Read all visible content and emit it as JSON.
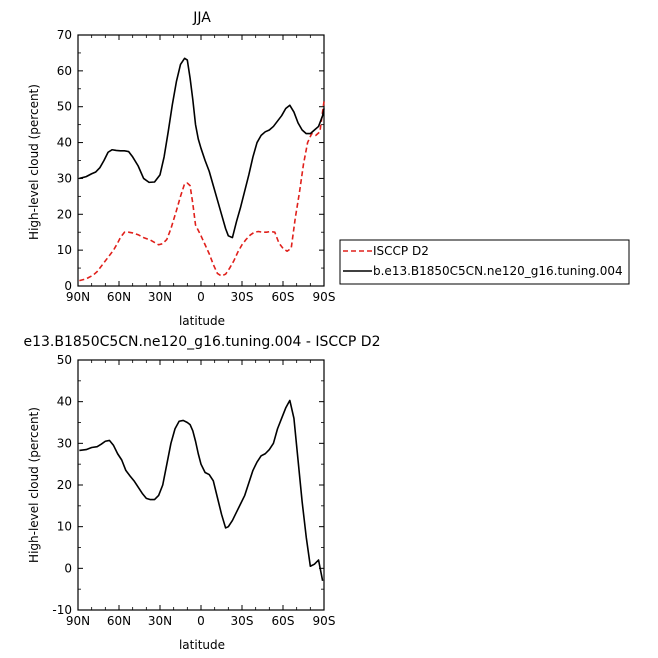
{
  "chart_data": [
    {
      "type": "line",
      "title": "JJA",
      "xlabel": "latitude",
      "ylabel": "High-level cloud (percent)",
      "xlim": [
        -90,
        90
      ],
      "ylim": [
        0,
        70
      ],
      "x_ticks": [
        -90,
        -60,
        -30,
        0,
        30,
        60,
        90
      ],
      "x_tick_labels": [
        "90N",
        "60N",
        "30N",
        "0",
        "30S",
        "60S",
        "90S"
      ],
      "y_ticks": [
        0,
        10,
        20,
        30,
        40,
        50,
        60,
        70
      ],
      "grid": false,
      "legend_position": "right",
      "series": [
        {
          "name": "ISCCP D2",
          "color": "#e0201b",
          "dash": "dashed",
          "x": [
            -89,
            -84,
            -79,
            -76,
            -72,
            -68,
            -64,
            -61,
            -59,
            -56,
            -53,
            -50,
            -46,
            -42,
            -37,
            -31,
            -28,
            -25,
            -22,
            -18,
            -15,
            -12,
            -10,
            -8,
            -6,
            -4,
            -2,
            0,
            3,
            6,
            9,
            12,
            15,
            18,
            21,
            24,
            27,
            30,
            33,
            36,
            39,
            42,
            45,
            48,
            51,
            54,
            57,
            60,
            63,
            66,
            69,
            72,
            75,
            78,
            81,
            84,
            87,
            90
          ],
          "y": [
            1.5,
            2,
            3,
            4,
            6,
            8,
            10,
            12,
            13.5,
            15,
            15,
            14.8,
            14.3,
            13.5,
            12.8,
            11.5,
            11.8,
            13,
            16,
            21,
            25,
            28.5,
            28.7,
            28,
            23,
            17,
            15.5,
            14,
            11.5,
            9,
            6,
            3.5,
            2.8,
            3.3,
            5,
            7,
            9.5,
            11.5,
            13,
            14.2,
            15,
            15.2,
            15,
            15,
            15.2,
            15,
            12,
            10.5,
            9.7,
            10.5,
            19,
            26,
            34,
            40,
            42.5,
            42,
            43,
            51.5
          ]
        },
        {
          "name": "b.e13.B1850C5CN.ne120_g16.tuning.004",
          "color": "#000000",
          "dash": "solid",
          "x": [
            -89,
            -84,
            -80,
            -77,
            -74,
            -71,
            -68,
            -65,
            -62,
            -59,
            -56,
            -53,
            -50,
            -46,
            -42,
            -38,
            -34,
            -30,
            -27,
            -24,
            -21,
            -18,
            -15,
            -12,
            -10,
            -8,
            -6,
            -4,
            -2,
            0,
            3,
            6,
            9,
            12,
            15,
            18,
            20,
            23,
            26,
            29,
            32,
            35,
            38,
            41,
            44,
            47,
            50,
            53,
            56,
            59,
            62,
            65,
            68,
            71,
            74,
            77,
            80,
            83,
            86,
            89,
            90
          ],
          "y": [
            30,
            30.5,
            31.3,
            31.8,
            33,
            35,
            37.3,
            38,
            37.8,
            37.7,
            37.7,
            37.5,
            36,
            33.5,
            30,
            28.9,
            29,
            31,
            36,
            43,
            50.5,
            57,
            61.8,
            63.5,
            63,
            58,
            52,
            45,
            41,
            38.4,
            35,
            32,
            28,
            24,
            20,
            16,
            14,
            13.5,
            18,
            22,
            26.5,
            31,
            36,
            40,
            42,
            43,
            43.5,
            44.5,
            46,
            47.5,
            49.5,
            50.4,
            48.5,
            45.5,
            43.5,
            42.5,
            42.5,
            43.5,
            44.5,
            47.5,
            49.5
          ]
        }
      ]
    },
    {
      "type": "line",
      "title": "e13.B1850C5CN.ne120_g16.tuning.004 - ISCCP D2",
      "xlabel": "latitude",
      "ylabel": "High-level cloud (percent)",
      "xlim": [
        -90,
        90
      ],
      "ylim": [
        -10,
        50
      ],
      "x_ticks": [
        -90,
        -60,
        -30,
        0,
        30,
        60,
        90
      ],
      "x_tick_labels": [
        "90N",
        "60N",
        "30N",
        "0",
        "30S",
        "60S",
        "90S"
      ],
      "y_ticks": [
        -10,
        0,
        10,
        20,
        30,
        40,
        50
      ],
      "grid": false,
      "series": [
        {
          "color": "#000000",
          "dash": "solid",
          "x": [
            -89,
            -84,
            -80,
            -76,
            -73,
            -70,
            -67,
            -64,
            -61,
            -58,
            -55,
            -52,
            -49,
            -46,
            -43,
            -40,
            -37,
            -34,
            -31,
            -28,
            -25,
            -22,
            -19,
            -16,
            -13,
            -10,
            -8,
            -6,
            -4,
            -2,
            0,
            3,
            6,
            9,
            12,
            15,
            18,
            20,
            23,
            26,
            29,
            32,
            35,
            38,
            41,
            44,
            47,
            50,
            53,
            56,
            59,
            62,
            65,
            68,
            71,
            74,
            77,
            80,
            83,
            86,
            89
          ],
          "y": [
            28.3,
            28.5,
            29,
            29.2,
            29.8,
            30.5,
            30.7,
            29.5,
            27.5,
            26,
            23.5,
            22.2,
            21,
            19.5,
            18,
            16.8,
            16.5,
            16.5,
            17.5,
            20,
            25,
            30,
            33.5,
            35.3,
            35.5,
            35,
            34.5,
            33,
            30.5,
            27.5,
            25,
            23,
            22.5,
            21,
            17,
            13,
            9.7,
            10,
            11.5,
            13.5,
            15.5,
            17.5,
            20.5,
            23.5,
            25.5,
            27,
            27.5,
            28.5,
            30,
            33.5,
            36,
            38.5,
            40.3,
            36,
            26,
            16,
            7.5,
            0.5,
            1,
            2,
            -3
          ]
        }
      ]
    }
  ],
  "legend": {
    "entries": [
      "ISCCP D2",
      "b.e13.B1850C5CN.ne120_g16.tuning.004"
    ]
  }
}
